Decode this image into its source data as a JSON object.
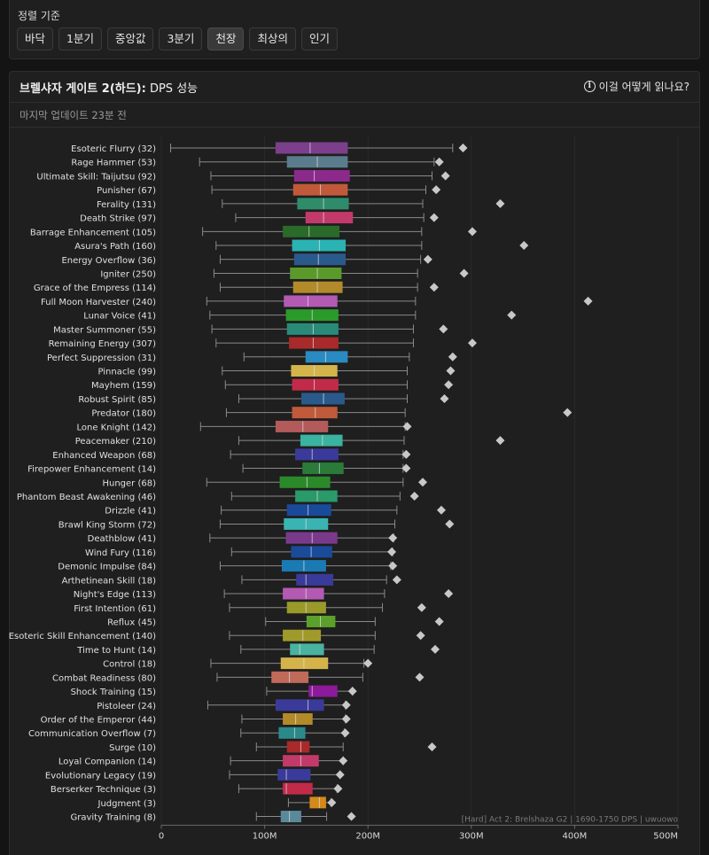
{
  "sort": {
    "title": "정렬 기준",
    "buttons": [
      "바닥",
      "1분기",
      "중앙값",
      "3분기",
      "천장",
      "최상의",
      "인기"
    ],
    "active_index": 4
  },
  "header": {
    "title_bold": "브렐샤자 게이트 2(하드):",
    "title_rest": " DPS 성능",
    "help_label": "이걸 어떻게 읽나요?",
    "help_icon": "info-icon",
    "updated": "마지막 업데이트 23분 전"
  },
  "chart_data": {
    "type": "boxplot",
    "orientation": "horizontal",
    "caption": "[Hard] Act 2: Brelshaza G2 | 1690-1750 DPS | uwuowo",
    "x_ticks": [
      "0",
      "100M",
      "200M",
      "300M",
      "400M",
      "500M"
    ],
    "x_tick_values": [
      0,
      100,
      200,
      300,
      400,
      500
    ],
    "xlim": [
      0,
      500
    ],
    "unit": "M",
    "colors": {
      "whisker": "#8a8a8a",
      "max_marker": "#c8c8c8",
      "grid": "#2a2a2a",
      "median": "#e0e0e0"
    },
    "series": [
      {
        "name": "Esoteric Flurry (32)",
        "min": 9,
        "q1": 111,
        "median": 144,
        "q3": 180,
        "max": 282,
        "top": 292,
        "color": "#7c3f8c"
      },
      {
        "name": "Rage Hammer (53)",
        "min": 37,
        "q1": 122,
        "median": 151,
        "q3": 180,
        "max": 264,
        "top": 269,
        "color": "#5b7c8c"
      },
      {
        "name": "Ultimate Skill: Taijutsu (92)",
        "min": 48,
        "q1": 129,
        "median": 148,
        "q3": 182,
        "max": 262,
        "top": 275,
        "color": "#8c2a8c"
      },
      {
        "name": "Punisher (67)",
        "min": 49,
        "q1": 128,
        "median": 154,
        "q3": 180,
        "max": 256,
        "top": 266,
        "color": "#c05a3a"
      },
      {
        "name": "Ferality (131)",
        "min": 59,
        "q1": 132,
        "median": 157,
        "q3": 181,
        "max": 253,
        "top": 328,
        "color": "#2f8c6a"
      },
      {
        "name": "Death Strike (97)",
        "min": 72,
        "q1": 140,
        "median": 157,
        "q3": 185,
        "max": 254,
        "top": 264,
        "color": "#c23a6a"
      },
      {
        "name": "Barrage Enhancement (105)",
        "min": 40,
        "q1": 118,
        "median": 143,
        "q3": 172,
        "max": 252,
        "top": 301,
        "color": "#2a6a2a"
      },
      {
        "name": "Asura's Path (160)",
        "min": 53,
        "q1": 127,
        "median": 153,
        "q3": 178,
        "max": 252,
        "top": 351,
        "color": "#2ab3b3"
      },
      {
        "name": "Energy Overflow (36)",
        "min": 57,
        "q1": 129,
        "median": 152,
        "q3": 178,
        "max": 251,
        "top": 258,
        "color": "#2a5a8c"
      },
      {
        "name": "Igniter (250)",
        "min": 51,
        "q1": 125,
        "median": 151,
        "q3": 174,
        "max": 248,
        "top": 293,
        "color": "#5a9a2a"
      },
      {
        "name": "Grace of the Empress (114)",
        "min": 57,
        "q1": 128,
        "median": 151,
        "q3": 175,
        "max": 248,
        "top": 264,
        "color": "#b38a2a"
      },
      {
        "name": "Full Moon Harvester (240)",
        "min": 44,
        "q1": 119,
        "median": 142,
        "q3": 170,
        "max": 246,
        "top": 413,
        "color": "#b35ab3"
      },
      {
        "name": "Lunar Voice (41)",
        "min": 47,
        "q1": 121,
        "median": 146,
        "q3": 171,
        "max": 246,
        "top": 339,
        "color": "#2a9a2a"
      },
      {
        "name": "Master Summoner (55)",
        "min": 49,
        "q1": 122,
        "median": 147,
        "q3": 171,
        "max": 244,
        "top": 273,
        "color": "#2a8a7a"
      },
      {
        "name": "Remaining Energy (307)",
        "min": 53,
        "q1": 124,
        "median": 147,
        "q3": 171,
        "max": 244,
        "top": 301,
        "color": "#a82a2a"
      },
      {
        "name": "Perfect Suppression (31)",
        "min": 80,
        "q1": 140,
        "median": 159,
        "q3": 180,
        "max": 240,
        "top": 282,
        "color": "#2a8ac2"
      },
      {
        "name": "Pinnacle (99)",
        "min": 59,
        "q1": 126,
        "median": 148,
        "q3": 170,
        "max": 238,
        "top": 280,
        "color": "#d4b44a"
      },
      {
        "name": "Mayhem (159)",
        "min": 62,
        "q1": 127,
        "median": 148,
        "q3": 171,
        "max": 238,
        "top": 278,
        "color": "#c22a4a"
      },
      {
        "name": "Robust Spirit (85)",
        "min": 75,
        "q1": 136,
        "median": 157,
        "q3": 177,
        "max": 238,
        "top": 274,
        "color": "#2a5a8c"
      },
      {
        "name": "Predator (180)",
        "min": 63,
        "q1": 127,
        "median": 149,
        "q3": 170,
        "max": 236,
        "top": 393,
        "color": "#c05a3a"
      },
      {
        "name": "Lone Knight (142)",
        "min": 38,
        "q1": 111,
        "median": 137,
        "q3": 161,
        "max": 236,
        "top": 238,
        "color": "#b35a5a"
      },
      {
        "name": "Peacemaker (210)",
        "min": 75,
        "q1": 135,
        "median": 156,
        "q3": 175,
        "max": 235,
        "top": 328,
        "color": "#3ab3a0"
      },
      {
        "name": "Enhanced Weapon (68)",
        "min": 67,
        "q1": 130,
        "median": 146,
        "q3": 171,
        "max": 234,
        "top": 237,
        "color": "#3a3a9a"
      },
      {
        "name": "Firepower Enhancement (14)",
        "min": 79,
        "q1": 137,
        "median": 153,
        "q3": 176,
        "max": 234,
        "top": 237,
        "color": "#2a7a3a"
      },
      {
        "name": "Hunger (68)",
        "min": 44,
        "q1": 115,
        "median": 141,
        "q3": 163,
        "max": 234,
        "top": 253,
        "color": "#2a8a2a"
      },
      {
        "name": "Phantom Beast Awakening (46)",
        "min": 68,
        "q1": 130,
        "median": 151,
        "q3": 170,
        "max": 231,
        "top": 245,
        "color": "#2a9a6a"
      },
      {
        "name": "Drizzle (41)",
        "min": 58,
        "q1": 122,
        "median": 142,
        "q3": 164,
        "max": 228,
        "top": 271,
        "color": "#1a4a9a"
      },
      {
        "name": "Brawl King Storm (72)",
        "min": 57,
        "q1": 119,
        "median": 140,
        "q3": 161,
        "max": 226,
        "top": 279,
        "color": "#3ab3b3"
      },
      {
        "name": "Deathblow (41)",
        "min": 47,
        "q1": 121,
        "median": 146,
        "q3": 170,
        "max": 225,
        "top": 224,
        "color": "#7a3a8c"
      },
      {
        "name": "Wind Fury (116)",
        "min": 68,
        "q1": 126,
        "median": 145,
        "q3": 165,
        "max": 224,
        "top": 223,
        "color": "#1a4a9a"
      },
      {
        "name": "Demonic Impulse (84)",
        "min": 57,
        "q1": 117,
        "median": 138,
        "q3": 159,
        "max": 222,
        "top": 224,
        "color": "#1a7ab3"
      },
      {
        "name": "Arthetinean Skill (18)",
        "min": 78,
        "q1": 131,
        "median": 140,
        "q3": 166,
        "max": 218,
        "top": 228,
        "color": "#3a3a9a"
      },
      {
        "name": "Night's Edge (113)",
        "min": 61,
        "q1": 118,
        "median": 140,
        "q3": 157,
        "max": 216,
        "top": 278,
        "color": "#b35ab3"
      },
      {
        "name": "First Intention (61)",
        "min": 66,
        "q1": 122,
        "median": 140,
        "q3": 159,
        "max": 214,
        "top": 252,
        "color": "#9a9a2a"
      },
      {
        "name": "Reflux (45)",
        "min": 101,
        "q1": 141,
        "median": 154,
        "q3": 168,
        "max": 207,
        "top": 269,
        "color": "#5aa02a"
      },
      {
        "name": "Esoteric Skill Enhancement (140)",
        "min": 66,
        "q1": 118,
        "median": 137,
        "q3": 154,
        "max": 207,
        "top": 251,
        "color": "#a09a2a"
      },
      {
        "name": "Time to Hunt (14)",
        "min": 77,
        "q1": 125,
        "median": 134,
        "q3": 157,
        "max": 206,
        "top": 265,
        "color": "#4ab3a0"
      },
      {
        "name": "Control (18)",
        "min": 48,
        "q1": 116,
        "median": 138,
        "q3": 161,
        "max": 196,
        "top": 200,
        "color": "#d4b44a"
      },
      {
        "name": "Combat Readiness (80)",
        "min": 54,
        "q1": 107,
        "median": 124,
        "q3": 142,
        "max": 195,
        "top": 250,
        "color": "#c06a5a"
      },
      {
        "name": "Shock Training (15)",
        "min": 102,
        "q1": 143,
        "median": 146,
        "q3": 170,
        "max": 185,
        "top": 185,
        "color": "#8c1a9a"
      },
      {
        "name": "Pistoleer (24)",
        "min": 45,
        "q1": 111,
        "median": 142,
        "q3": 157,
        "max": 178,
        "top": 179,
        "color": "#3a3a9a"
      },
      {
        "name": "Order of the Emperor (44)",
        "min": 78,
        "q1": 118,
        "median": 130,
        "q3": 146,
        "max": 178,
        "top": 179,
        "color": "#b38a2a"
      },
      {
        "name": "Communication Overflow (7)",
        "min": 77,
        "q1": 114,
        "median": 129,
        "q3": 139,
        "max": 177,
        "top": 178,
        "color": "#2a8a8a"
      },
      {
        "name": "Surge (10)",
        "min": 92,
        "q1": 122,
        "median": 135,
        "q3": 143,
        "max": 176,
        "top": 262,
        "color": "#a82a2a"
      },
      {
        "name": "Loyal Companion (14)",
        "min": 67,
        "q1": 118,
        "median": 135,
        "q3": 152,
        "max": 176,
        "top": 176,
        "color": "#c23a6a"
      },
      {
        "name": "Evolutionary Legacy (19)",
        "min": 66,
        "q1": 113,
        "median": 121,
        "q3": 144,
        "max": 173,
        "top": 173,
        "color": "#3a3a9a"
      },
      {
        "name": "Berserker Technique (3)",
        "min": 75,
        "q1": 118,
        "median": 121,
        "q3": 146,
        "max": 170,
        "top": 171,
        "color": "#c22a4a"
      },
      {
        "name": "Judgment (3)",
        "min": 123,
        "q1": 144,
        "median": 153,
        "q3": 159,
        "max": 164,
        "top": 165,
        "color": "#d48a1a"
      },
      {
        "name": "Gravity Training (8)",
        "min": 92,
        "q1": 116,
        "median": 124,
        "q3": 135,
        "max": 160,
        "top": 184,
        "color": "#5a8a9a"
      }
    ]
  }
}
